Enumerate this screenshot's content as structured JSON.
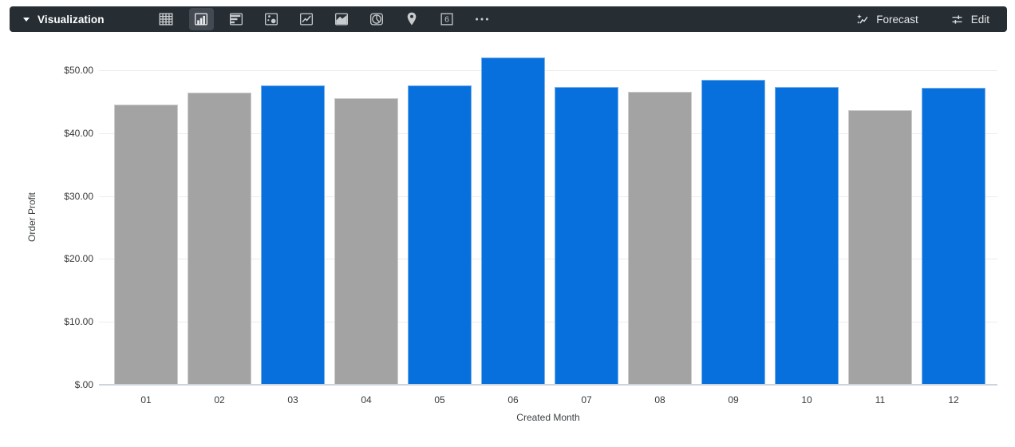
{
  "toolbar": {
    "title": "Visualization",
    "viz_types": [
      {
        "name": "table",
        "selected": false
      },
      {
        "name": "column",
        "selected": true
      },
      {
        "name": "bar",
        "selected": false
      },
      {
        "name": "scatter",
        "selected": false
      },
      {
        "name": "line",
        "selected": false
      },
      {
        "name": "area",
        "selected": false
      },
      {
        "name": "pie",
        "selected": false
      },
      {
        "name": "map",
        "selected": false
      },
      {
        "name": "single-value",
        "selected": false,
        "glyph": "6"
      },
      {
        "name": "more",
        "selected": false
      }
    ],
    "forecast_label": "Forecast",
    "edit_label": "Edit"
  },
  "chart_data": {
    "type": "bar",
    "title": "",
    "xlabel": "Created Month",
    "ylabel": "Order Profit",
    "categories": [
      "01",
      "02",
      "03",
      "04",
      "05",
      "06",
      "07",
      "08",
      "09",
      "10",
      "11",
      "12"
    ],
    "values": [
      44.5,
      46.5,
      47.6,
      45.6,
      47.6,
      52.0,
      47.3,
      46.6,
      48.5,
      47.3,
      43.6,
      47.2
    ],
    "bar_colors": [
      "gray",
      "gray",
      "blue",
      "gray",
      "blue",
      "blue",
      "blue",
      "gray",
      "blue",
      "blue",
      "gray",
      "blue"
    ],
    "palette": {
      "blue": "#0770dc",
      "gray": "#a3a3a3"
    },
    "y_ticks": [
      {
        "value": 0,
        "label": "$.00"
      },
      {
        "value": 10,
        "label": "$10.00"
      },
      {
        "value": 20,
        "label": "$20.00"
      },
      {
        "value": 30,
        "label": "$30.00"
      },
      {
        "value": 40,
        "label": "$40.00"
      },
      {
        "value": 50,
        "label": "$50.00"
      }
    ],
    "ylim": [
      0,
      53.3
    ],
    "grid": true,
    "legend": "none"
  }
}
